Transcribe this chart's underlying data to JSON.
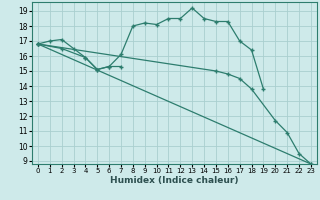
{
  "xlabel": "Humidex (Indice chaleur)",
  "bg_color": "#ceeaea",
  "line_color": "#2d7d6e",
  "grid_color": "#aacfcf",
  "xlim": [
    -0.5,
    23.5
  ],
  "ylim": [
    8.8,
    19.6
  ],
  "yticks": [
    9,
    10,
    11,
    12,
    13,
    14,
    15,
    16,
    17,
    18,
    19
  ],
  "xticks": [
    0,
    1,
    2,
    3,
    4,
    5,
    6,
    7,
    8,
    9,
    10,
    11,
    12,
    13,
    14,
    15,
    16,
    17,
    18,
    19,
    20,
    21,
    22,
    23
  ],
  "lines": [
    {
      "x": [
        0,
        1,
        2,
        3,
        4,
        5,
        6,
        7,
        8,
        9,
        10,
        11,
        12,
        13,
        14,
        15,
        16,
        17,
        18,
        19
      ],
      "y": [
        16.8,
        17.0,
        17.1,
        16.5,
        15.9,
        15.1,
        15.3,
        16.1,
        18.0,
        18.2,
        18.1,
        18.5,
        18.5,
        19.2,
        18.5,
        18.3,
        18.3,
        17.0,
        16.4,
        13.8
      ]
    },
    {
      "x": [
        0,
        2,
        4,
        5,
        6,
        7
      ],
      "y": [
        16.8,
        16.5,
        15.9,
        15.1,
        15.3,
        15.3
      ]
    },
    {
      "x": [
        0,
        15,
        16,
        17,
        18,
        20,
        21,
        22,
        23
      ],
      "y": [
        16.8,
        15.0,
        14.8,
        14.5,
        13.8,
        11.7,
        10.9,
        9.5,
        8.8
      ]
    },
    {
      "x": [
        0,
        23
      ],
      "y": [
        16.8,
        8.8
      ]
    }
  ]
}
